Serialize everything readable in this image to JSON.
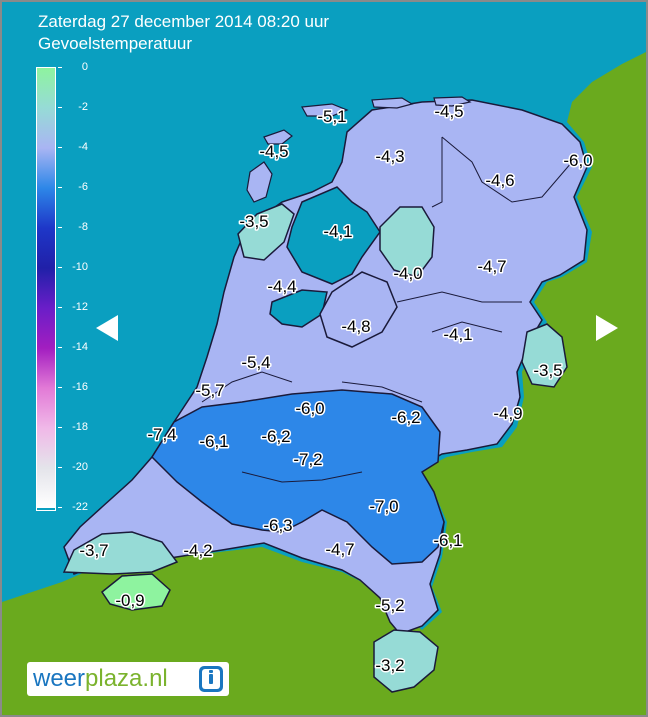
{
  "header": {
    "line1": "Zaterdag 27 december 2014 08:20 uur",
    "line2": "Gevoelstemperatuur"
  },
  "legend": {
    "labels": [
      "0",
      "-2",
      "-4",
      "-6",
      "-8",
      "-10",
      "-12",
      "-14",
      "-16",
      "-18",
      "-20",
      "-22"
    ],
    "colors": [
      "#8ef39f",
      "#96dbd6",
      "#a9b5f3",
      "#2d87e8",
      "#1e37c8",
      "#2020a8",
      "#6a1ec8",
      "#a21ec0",
      "#e27ad6",
      "#f0b8e8",
      "#e4e4ea",
      "#ffffff"
    ]
  },
  "colors": {
    "sea": "#0a9fc0",
    "land": "#6aaa1e",
    "zone_4_6": "#a9b5f3",
    "zone_6_8": "#2d87e8",
    "zone_2_4": "#96dbd6",
    "zone_0_2": "#8ef39f"
  },
  "readings": [
    {
      "value": "-5,1",
      "area": "wadden-oost"
    },
    {
      "value": "-4,5",
      "area": "schiermonnikoog"
    },
    {
      "value": "-4,5",
      "area": "vlieland"
    },
    {
      "value": "-4,3",
      "area": "friesland"
    },
    {
      "value": "-4,6",
      "area": "groningen"
    },
    {
      "value": "-6,0",
      "area": "oost-groningen"
    },
    {
      "value": "-3,5",
      "area": "den-helder"
    },
    {
      "value": "-4,1",
      "area": "ijsselmeer"
    },
    {
      "value": "-4,0",
      "area": "noordoostpolder"
    },
    {
      "value": "-4,7",
      "area": "drenthe"
    },
    {
      "value": "-4,4",
      "area": "noord-holland"
    },
    {
      "value": "-4,8",
      "area": "flevoland"
    },
    {
      "value": "-4,1",
      "area": "overijssel"
    },
    {
      "value": "-3,5",
      "area": "twente"
    },
    {
      "value": "-5,4",
      "area": "amsterdam"
    },
    {
      "value": "-5,7",
      "area": "haarlem"
    },
    {
      "value": "-6,0",
      "area": "utrecht"
    },
    {
      "value": "-6,2",
      "area": "veluwe"
    },
    {
      "value": "-4,9",
      "area": "achterhoek"
    },
    {
      "value": "-7,4",
      "area": "den-haag"
    },
    {
      "value": "-6,1",
      "area": "leiden"
    },
    {
      "value": "-6,2",
      "area": "gouda"
    },
    {
      "value": "-7,2",
      "area": "rivierengebied"
    },
    {
      "value": "-7,0",
      "area": "nijmegen"
    },
    {
      "value": "-6,3",
      "area": "breda"
    },
    {
      "value": "-4,7",
      "area": "eindhoven"
    },
    {
      "value": "-6,1",
      "area": "noord-limburg"
    },
    {
      "value": "-3,7",
      "area": "zeeland"
    },
    {
      "value": "-4,2",
      "area": "bergen-op-zoom"
    },
    {
      "value": "-0,9",
      "area": "zeeuws-vlaanderen"
    },
    {
      "value": "-5,2",
      "area": "midden-limburg"
    },
    {
      "value": "-3,2",
      "area": "zuid-limburg"
    }
  ],
  "navigation": {
    "prev_icon": "arrow-left-icon",
    "next_icon": "arrow-right-icon"
  },
  "logo": {
    "part1": "weer",
    "part2": "plaza.nl",
    "icon": "info-icon"
  }
}
